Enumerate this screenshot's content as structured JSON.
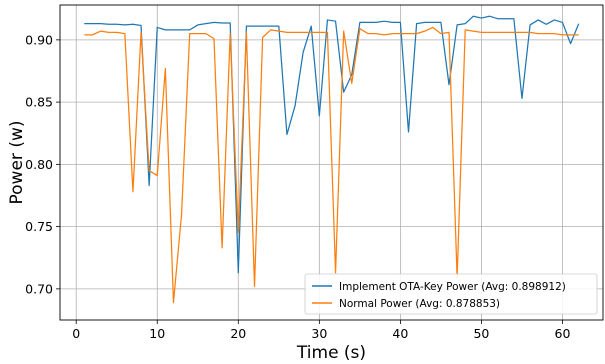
{
  "chart_data": {
    "type": "line",
    "xlabel": "Time (s)",
    "ylabel": "Power (w)",
    "xlim": [
      -2,
      65
    ],
    "ylim": [
      0.675,
      0.928
    ],
    "xticks": [
      0,
      10,
      20,
      30,
      40,
      50,
      60
    ],
    "yticks": [
      0.7,
      0.75,
      0.8,
      0.85,
      0.9
    ],
    "grid": true,
    "legend_position": "bottom-right",
    "series": [
      {
        "name": "Implement OTA-Key Power (Avg: 0.898912)",
        "color": "#1f77b4",
        "x": [
          1,
          2,
          3,
          4,
          5,
          6,
          7,
          8,
          9,
          10,
          11,
          12,
          13,
          14,
          15,
          16,
          17,
          18,
          19,
          20,
          21,
          22,
          23,
          24,
          25,
          26,
          27,
          28,
          29,
          30,
          31,
          32,
          33,
          34,
          35,
          36,
          37,
          38,
          39,
          40,
          41,
          42,
          43,
          44,
          45,
          46,
          47,
          48,
          49,
          50,
          51,
          52,
          53,
          54,
          55,
          56,
          57,
          58,
          59,
          60,
          61,
          62
        ],
        "y": [
          0.913,
          0.913,
          0.913,
          0.9125,
          0.9125,
          0.912,
          0.9125,
          0.9115,
          0.783,
          0.91,
          0.908,
          0.908,
          0.908,
          0.908,
          0.912,
          0.913,
          0.914,
          0.9135,
          0.9135,
          0.713,
          0.911,
          0.911,
          0.911,
          0.911,
          0.911,
          0.824,
          0.847,
          0.89,
          0.911,
          0.839,
          0.916,
          0.915,
          0.858,
          0.872,
          0.914,
          0.914,
          0.914,
          0.915,
          0.914,
          0.914,
          0.826,
          0.913,
          0.914,
          0.914,
          0.914,
          0.864,
          0.912,
          0.913,
          0.919,
          0.9175,
          0.919,
          0.917,
          0.917,
          0.917,
          0.853,
          0.912,
          0.916,
          0.9125,
          0.916,
          0.914,
          0.897,
          0.913
        ]
      },
      {
        "name": "Normal Power (Avg: 0.878853)",
        "color": "#ff7f0e",
        "x": [
          1,
          2,
          3,
          4,
          5,
          6,
          7,
          8,
          9,
          10,
          11,
          12,
          13,
          14,
          15,
          16,
          17,
          18,
          19,
          20,
          21,
          22,
          23,
          24,
          25,
          26,
          27,
          28,
          29,
          30,
          31,
          32,
          33,
          34,
          35,
          36,
          37,
          38,
          39,
          40,
          41,
          42,
          43,
          44,
          45,
          46,
          47,
          48,
          49,
          50,
          51,
          52,
          53,
          54,
          55,
          56,
          57,
          58,
          59,
          60,
          61,
          62
        ],
        "y": [
          0.904,
          0.904,
          0.907,
          0.906,
          0.906,
          0.905,
          0.778,
          0.906,
          0.795,
          0.791,
          0.877,
          0.689,
          0.76,
          0.905,
          0.905,
          0.905,
          0.901,
          0.733,
          0.905,
          0.745,
          0.906,
          0.702,
          0.902,
          0.908,
          0.907,
          0.906,
          0.906,
          0.906,
          0.906,
          0.906,
          0.906,
          0.713,
          0.907,
          0.865,
          0.909,
          0.905,
          0.905,
          0.904,
          0.905,
          0.905,
          0.905,
          0.905,
          0.907,
          0.91,
          0.905,
          0.906,
          0.709,
          0.908,
          0.907,
          0.906,
          0.906,
          0.906,
          0.906,
          0.906,
          0.906,
          0.906,
          0.905,
          0.905,
          0.905,
          0.904,
          0.904,
          0.904
        ]
      }
    ]
  }
}
